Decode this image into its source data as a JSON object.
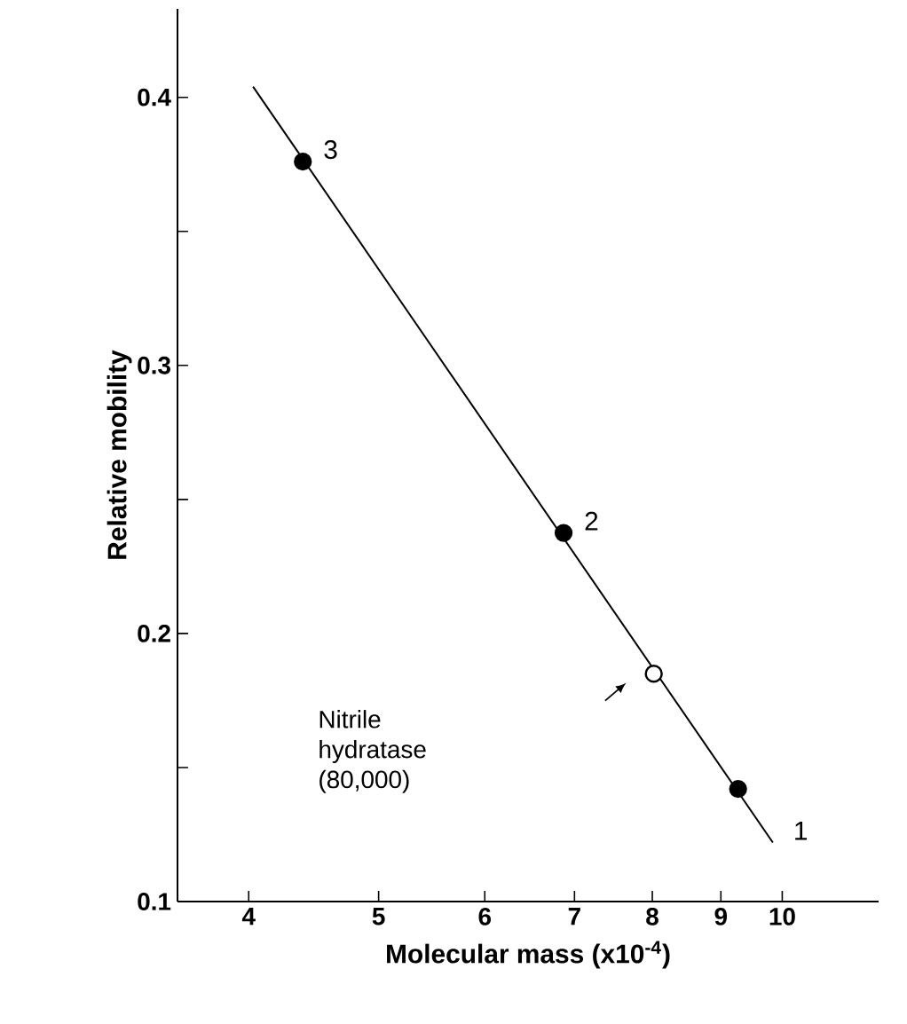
{
  "chart_data": {
    "type": "scatter",
    "xlabel": "Molecular mass (x10$^{-4}$)",
    "ylabel": "Relative mobility",
    "log": "x",
    "grid": false,
    "xlim": [
      3.54,
      11.8
    ],
    "ylim": [
      0.1,
      0.433
    ],
    "xticks": [
      4,
      5,
      6,
      7,
      8,
      9,
      10
    ],
    "yticks": [
      0.1,
      {
        "value": 0.15,
        "label": null
      },
      0.2,
      {
        "value": 0.25,
        "label": null
      },
      0.3,
      {
        "value": 0.35,
        "label": null
      },
      0.4
    ],
    "series": [
      {
        "type": "line",
        "color": "#000000",
        "marker": "none",
        "line_style": "solid",
        "x": [
          4.03,
          9.84
        ],
        "values": [
          0.404,
          0.122
        ]
      },
      {
        "color": "#000000",
        "marker": "circle",
        "colors": [
          "#000000",
          "#000000",
          "#ffffff",
          "#000000"
        ],
        "x": [
          4.39,
          6.87,
          8.02,
          9.27
        ],
        "values": [
          0.376,
          0.2375,
          0.185,
          0.142
        ]
      }
    ],
    "annotations": [
      {
        "text": "3",
        "x": 4.39,
        "y": 0.376
      },
      {
        "text": "2",
        "x": 6.87,
        "y": 0.2375
      },
      {
        "text": "1",
        "x": 9.84,
        "y": 0.122
      },
      "Nitrile hydratase (80,000)"
    ]
  }
}
